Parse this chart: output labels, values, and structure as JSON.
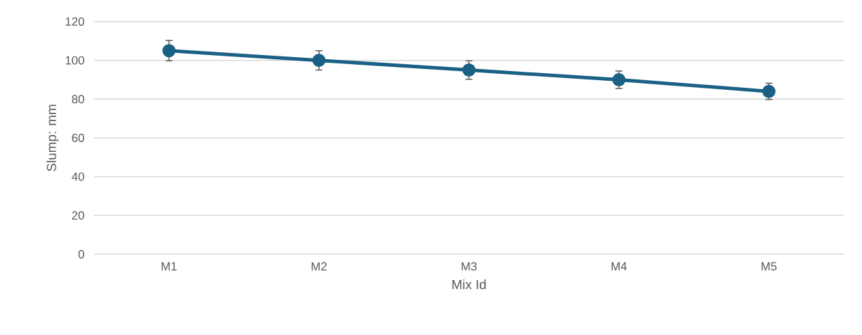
{
  "chart_data": {
    "type": "line",
    "xlabel": "Mix Id",
    "ylabel": "Slump: mm",
    "categories": [
      "M1",
      "M2",
      "M3",
      "M4",
      "M5"
    ],
    "series": [
      {
        "color": "#1a6185",
        "values": [
          105,
          100,
          95,
          90,
          84
        ],
        "errors": [
          5.25,
          5,
          4.75,
          4.5,
          4.2
        ]
      }
    ],
    "ylim": [
      0,
      120
    ],
    "yticks": [
      0,
      20,
      40,
      60,
      80,
      100,
      120
    ],
    "grid": "y",
    "marker": "circle"
  }
}
